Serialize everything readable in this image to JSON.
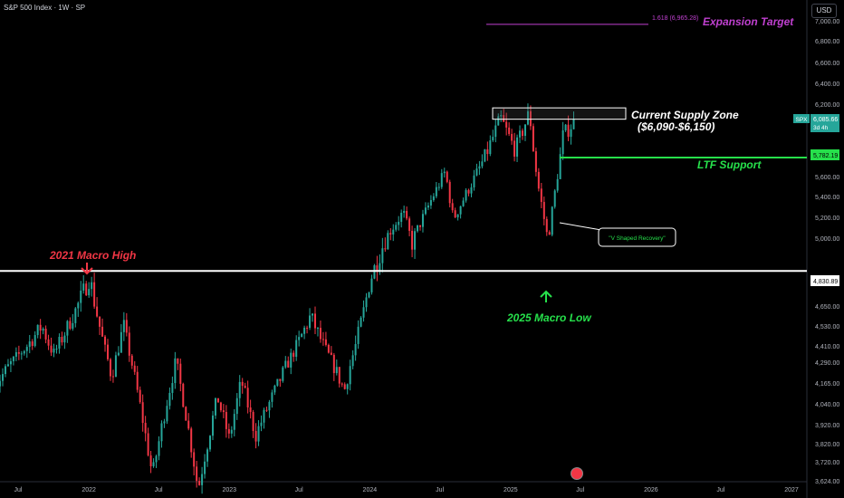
{
  "header": {
    "symbol": "S&P 500 Index · 1W · SP",
    "currency": "USD"
  },
  "colors": {
    "up": "#26a69a",
    "down": "#f23645",
    "axis_text": "#b2b5be",
    "white_line": "#ffffff",
    "support": "#26e04b",
    "target": "#c040d0",
    "macro_high": "#f23645",
    "macro_low": "#26e04b"
  },
  "annotations": {
    "expansion_fib": "1.618 (6,965.28)",
    "expansion_label": "Expansion Target",
    "supply_zone_line1": "Current Supply Zone",
    "supply_zone_line2": "($6,090-$6,150)",
    "ltf_support": "LTF Support",
    "v_recovery": "\"V Shaped Recovery\"",
    "macro_high": "2021 Macro High",
    "macro_low": "2025 Macro Low"
  },
  "price_tags": {
    "spx_symbol": "SPX",
    "spx_price": "6,085.66",
    "spx_countdown": "3d 4h",
    "support_price": "5,782.19",
    "macro_line_price": "4,830.89"
  },
  "chart_data": {
    "type": "candlestick",
    "title": "S&P 500 Index",
    "timeframe": "1W",
    "y_ticks": [
      "7,000.00",
      "6,800.00",
      "6,600.00",
      "6,400.00",
      "6,200.00",
      "5,800.00",
      "5,600.00",
      "5,400.00",
      "5,200.00",
      "5,000.00",
      "4,650.00",
      "4,530.00",
      "4,410.00",
      "4,290.00",
      "4,165.00",
      "4,040.00",
      "3,920.00",
      "3,820.00",
      "3,720.00",
      "3,624.00"
    ],
    "x_ticks": [
      "Jul",
      "2022",
      "Jul",
      "2023",
      "Jul",
      "2024",
      "Jul",
      "2025",
      "Jul",
      "2026",
      "Jul",
      "2027"
    ],
    "anchors": [
      {
        "date": "2021-05-01",
        "close": 4150
      },
      {
        "date": "2021-09-01",
        "close": 4530
      },
      {
        "date": "2021-10-01",
        "close": 4350
      },
      {
        "date": "2022-01-03",
        "close": 4800
      },
      {
        "date": "2022-03-01",
        "close": 4200
      },
      {
        "date": "2022-04-01",
        "close": 4540
      },
      {
        "date": "2022-06-15",
        "close": 3650
      },
      {
        "date": "2022-08-15",
        "close": 4300
      },
      {
        "date": "2022-10-12",
        "close": 3580
      },
      {
        "date": "2022-12-01",
        "close": 4080
      },
      {
        "date": "2023-01-01",
        "close": 3840
      },
      {
        "date": "2023-02-01",
        "close": 4180
      },
      {
        "date": "2023-03-10",
        "close": 3860
      },
      {
        "date": "2023-07-31",
        "close": 4590
      },
      {
        "date": "2023-10-27",
        "close": 4120
      },
      {
        "date": "2024-01-01",
        "close": 4780
      },
      {
        "date": "2024-03-28",
        "close": 5250
      },
      {
        "date": "2024-04-19",
        "close": 4970
      },
      {
        "date": "2024-07-15",
        "close": 5650
      },
      {
        "date": "2024-08-05",
        "close": 5180
      },
      {
        "date": "2024-12-06",
        "close": 6090
      },
      {
        "date": "2025-01-13",
        "close": 5840
      },
      {
        "date": "2025-02-19",
        "close": 6140
      },
      {
        "date": "2025-03-13",
        "close": 5520
      },
      {
        "date": "2025-04-08",
        "close": 4980
      },
      {
        "date": "2025-05-16",
        "close": 5950
      },
      {
        "date": "2025-06-20",
        "close": 6085
      }
    ],
    "levels": {
      "macro_line": 4830.89,
      "ltf_support": 5782.19,
      "supply_zone": [
        6090,
        6150
      ],
      "expansion_target": 6965.28,
      "current_price": 6085.66,
      "macro_low_2025": 4835,
      "macro_high_2021": 4818
    }
  }
}
